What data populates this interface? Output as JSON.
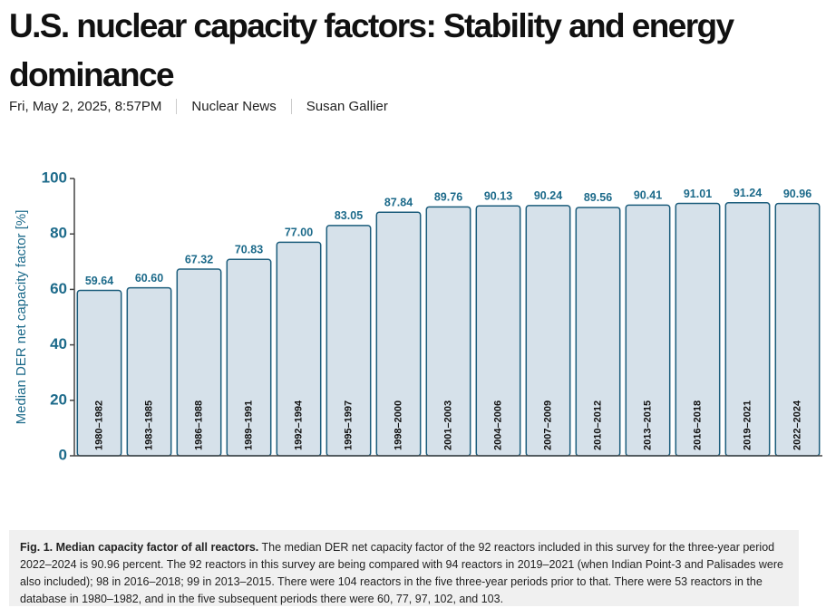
{
  "header": {
    "title": "U.S. nuclear capacity factors: Stability and energy dominance",
    "meta": [
      "Fri, May 2, 2025, 8:57PM",
      "Nuclear News",
      "Susan Gallier"
    ]
  },
  "chart_data": {
    "type": "bar",
    "y_label": "Median DER net capacity factor [%]",
    "categories": [
      "1980–1982",
      "1983–1985",
      "1986–1988",
      "1989–1991",
      "1992–1994",
      "1995–1997",
      "1998–2000",
      "2001–2003",
      "2004–2006",
      "2007–2009",
      "2010–2012",
      "2013–2015",
      "2016–2018",
      "2019–2021",
      "2022–2024"
    ],
    "values": [
      59.64,
      60.6,
      67.32,
      70.83,
      77.0,
      83.05,
      87.84,
      89.76,
      90.13,
      90.24,
      89.56,
      90.41,
      91.01,
      91.24,
      90.96
    ],
    "value_labels": [
      "59.64",
      "60.60",
      "67.32",
      "70.83",
      "77.00",
      "83.05",
      "87.84",
      "89.76",
      "90.13",
      "90.24",
      "89.56",
      "90.41",
      "91.01",
      "91.24",
      "90.96"
    ],
    "color": "#d6e1ea",
    "edge_color": "#1c5d7c",
    "ylim": [
      0,
      100
    ],
    "yticks": [
      0,
      20,
      40,
      60,
      80,
      100
    ],
    "grid": false
  },
  "caption": {
    "heading": "Fig. 1. Median capacity factor of all reactors.",
    "text": "The median DER net capacity factor of the 92 reactors included in this survey for the three-year period 2022–2024 is 90.96 percent. The 92 reactors in this survey are being compared with 94 reactors in 2019–2021 (when Indian Point-3 and Palisades were also included); 98 in 2016–2018; 99 in 2013–2015. There were 104 reactors in the five three-year periods prior to that. There were 53 reactors in the database in 1980–1982, and in the five subsequent periods there were 60, 77, 97, 102, and 103."
  }
}
